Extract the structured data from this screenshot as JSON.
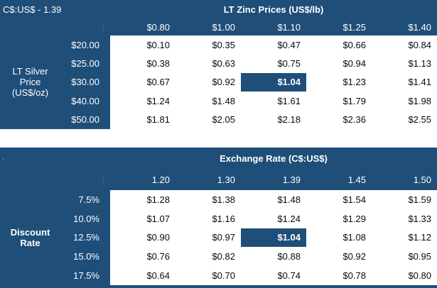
{
  "colors": {
    "navy": "#1F4E79",
    "index_marker_blue": "#2D5F98",
    "data_text": "#0A0A0A",
    "paper": "#FFFFFF"
  },
  "chart_data": [
    {
      "type": "table",
      "title": "LT Zinc Prices (US$/lb)",
      "note": "C$:US$ - 1.39",
      "row_axis_label": "LT Silver Price (US$/oz)",
      "row_axis_lines": [
        "LT Silver",
        "Price",
        "(US$/oz)"
      ],
      "index_marker": "1",
      "col_headers": [
        "$0.80",
        "$1.00",
        "$1.10",
        "$1.25",
        "$1.40"
      ],
      "row_headers": [
        "$20.00",
        "$25.00",
        "$30.00",
        "$40.00",
        "$50.00"
      ],
      "rows": [
        [
          "$0.10",
          "$0.35",
          "$0.47",
          "$0.66",
          "$0.84"
        ],
        [
          "$0.38",
          "$0.63",
          "$0.75",
          "$0.94",
          "$1.13"
        ],
        [
          "$0.67",
          "$0.92",
          "$1.04",
          "$1.23",
          "$1.41"
        ],
        [
          "$1.24",
          "$1.48",
          "$1.61",
          "$1.79",
          "$1.98"
        ],
        [
          "$1.81",
          "$2.05",
          "$2.18",
          "$2.36",
          "$2.55"
        ]
      ],
      "highlight": {
        "row_index": 2,
        "col_index": 2,
        "row_header": "$30.00",
        "col_header": "$1.10",
        "value": "$1.04"
      }
    },
    {
      "type": "table",
      "title": "Exchange Rate (C$:US$)",
      "stray_mark": "`",
      "row_axis_label": "Discount Rate",
      "row_axis_lines": [
        "Discount",
        "Rate"
      ],
      "index_marker": "1",
      "col_headers": [
        "1.20",
        "1.30",
        "1.39",
        "1.45",
        "1.50"
      ],
      "row_headers": [
        "7.5%",
        "10.0%",
        "12.5%",
        "15.0%",
        "17.5%"
      ],
      "rows": [
        [
          "$1.28",
          "$1.38",
          "$1.48",
          "$1.54",
          "$1.59"
        ],
        [
          "$1.07",
          "$1.16",
          "$1.24",
          "$1.29",
          "$1.33"
        ],
        [
          "$0.90",
          "$0.97",
          "$1.04",
          "$1.08",
          "$1.12"
        ],
        [
          "$0.76",
          "$0.82",
          "$0.88",
          "$0.92",
          "$0.95"
        ],
        [
          "$0.64",
          "$0.70",
          "$0.74",
          "$0.78",
          "$0.80"
        ]
      ],
      "highlight": {
        "row_index": 2,
        "col_index": 2,
        "row_header": "12.5%",
        "col_header": "1.39",
        "value": "$1.04"
      }
    }
  ]
}
